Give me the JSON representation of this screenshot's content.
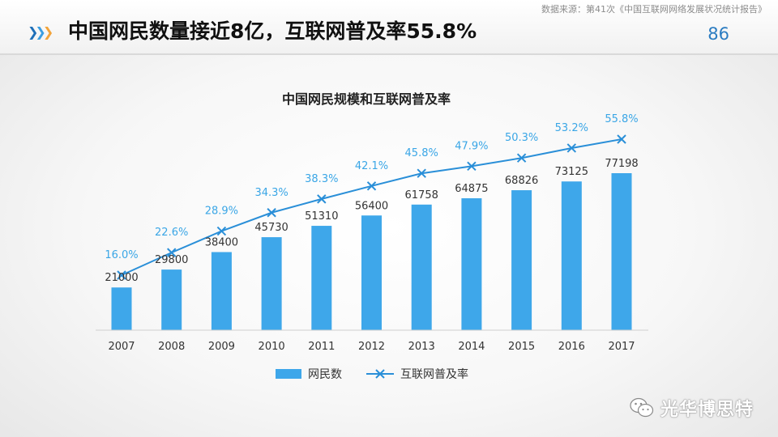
{
  "header": {
    "source": "数据来源：第41次《中国互联网网络发展状况统计报告》",
    "title": "中国网民数量接近8亿，互联网普及率55.8%",
    "page_number": "86"
  },
  "colors": {
    "bar": "#3ea7ea",
    "line": "#2a8fd8",
    "label_pct": "#3aa6e6",
    "label_val": "#333333",
    "chevrons": [
      "#1f6fb8",
      "#3c9ee0",
      "#f2a43a"
    ]
  },
  "chart_data": {
    "type": "bar",
    "title": "中国网民规模和互联网普及率",
    "categories": [
      "2007",
      "2008",
      "2009",
      "2010",
      "2011",
      "2012",
      "2013",
      "2014",
      "2015",
      "2016",
      "2017"
    ],
    "series": [
      {
        "name": "网民数",
        "type": "bar",
        "values": [
          21000,
          29800,
          38400,
          45730,
          51310,
          56400,
          61758,
          64875,
          68826,
          73125,
          77198
        ],
        "labels": [
          "21000",
          "29800",
          "38400",
          "45730",
          "51310",
          "56400",
          "61758",
          "64875",
          "68826",
          "73125",
          "77198"
        ]
      },
      {
        "name": "互联网普及率",
        "type": "line",
        "values": [
          16.0,
          22.6,
          28.9,
          34.3,
          38.3,
          42.1,
          45.8,
          47.9,
          50.3,
          53.2,
          55.8
        ],
        "labels": [
          "16.0%",
          "22.6%",
          "28.9%",
          "34.3%",
          "38.3%",
          "42.1%",
          "45.8%",
          "47.9%",
          "50.3%",
          "53.2%",
          "55.8%"
        ]
      }
    ],
    "legend": [
      "网民数",
      "互联网普及率"
    ],
    "legend_position": "bottom",
    "grid": false
  },
  "watermark": {
    "text": "光华博思特",
    "icon": "wechat-icon"
  }
}
